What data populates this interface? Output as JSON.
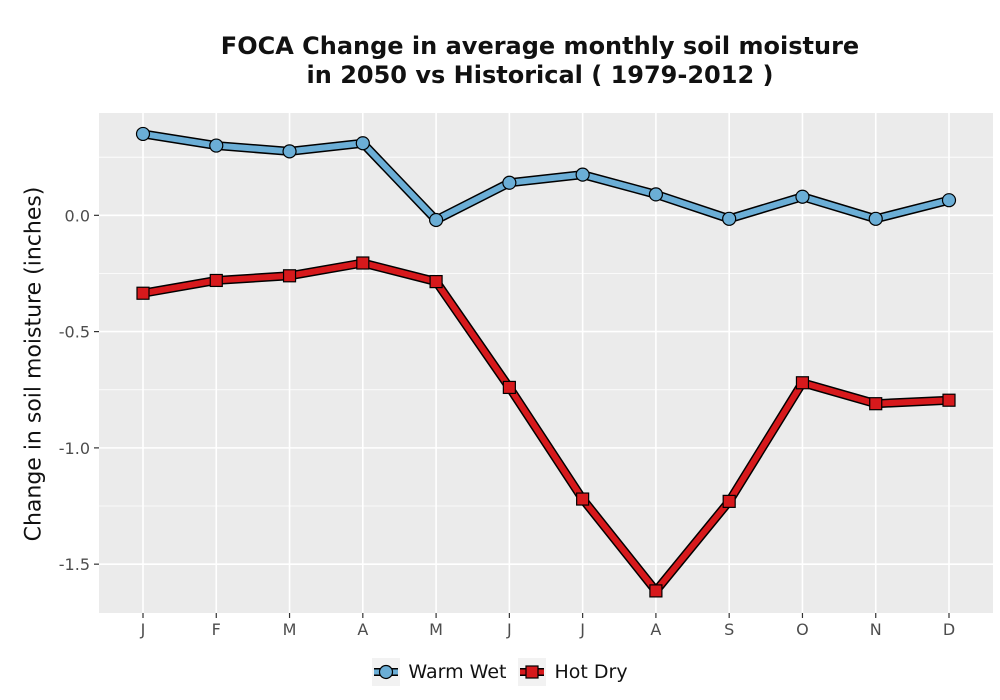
{
  "chart_data": {
    "type": "line",
    "title_line1": "FOCA  Change in average monthly soil moisture",
    "title_line2": "in 2050 vs Historical ( 1979-2012 )",
    "xlabel": "",
    "ylabel": "Change in soil moisture (inches)",
    "categories": [
      "J",
      "F",
      "M",
      "A",
      "M",
      "J",
      "J",
      "A",
      "S",
      "O",
      "N",
      "D"
    ],
    "yticks": [
      0.0,
      -0.5,
      -1.0,
      -1.5
    ],
    "ytick_labels": [
      "0.0",
      "-0.5",
      "-1.0",
      "-1.5"
    ],
    "ylim": [
      -1.71,
      0.44
    ],
    "grid": true,
    "legend_position": "bottom",
    "series": [
      {
        "name": "Warm Wet",
        "marker": "circle",
        "color": "#6baed6",
        "values": [
          0.35,
          0.3,
          0.275,
          0.31,
          -0.02,
          0.14,
          0.175,
          0.09,
          -0.015,
          0.08,
          -0.015,
          0.065
        ]
      },
      {
        "name": "Hot Dry",
        "marker": "square",
        "color": "#d7191c",
        "values": [
          -0.335,
          -0.28,
          -0.26,
          -0.205,
          -0.285,
          -0.74,
          -1.22,
          -1.615,
          -1.23,
          -0.72,
          -0.81,
          -0.795
        ]
      }
    ]
  }
}
